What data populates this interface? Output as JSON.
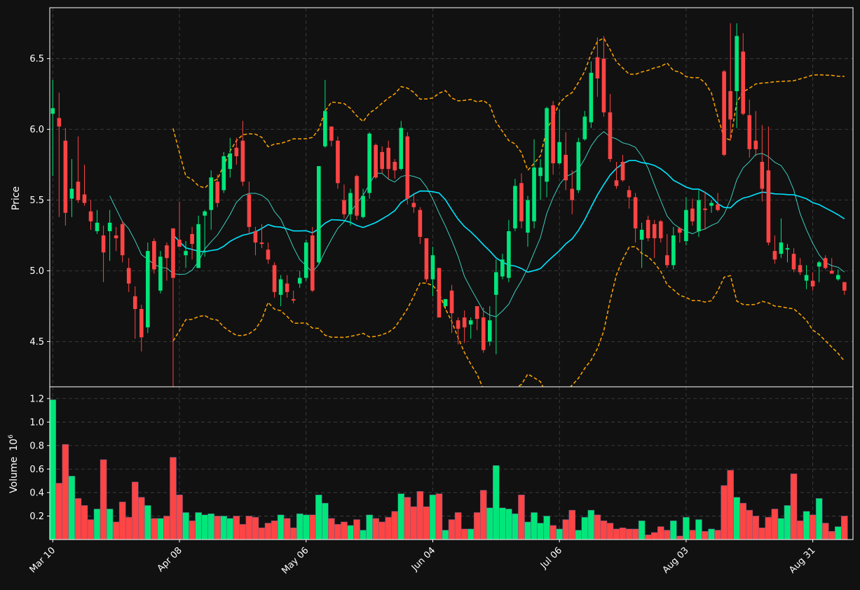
{
  "chart_data": {
    "type": "candlestick",
    "ylabel_price": "Price",
    "ylabel_volume": "Volume",
    "volume_multiplier_label": "10",
    "volume_multiplier_exp": "6",
    "price_ylim": [
      4.18,
      6.86
    ],
    "price_yticks": [
      "4.5",
      "5.0",
      "5.5",
      "6.0",
      "6.5"
    ],
    "volume_ylim": [
      0,
      1.3
    ],
    "volume_yticks": [
      "0.2",
      "0.4",
      "0.6",
      "0.8",
      "1.0",
      "1.2"
    ],
    "xtick_labels": [
      "Mar 10",
      "Apr 08",
      "May 06",
      "Jun 04",
      "Jul 06",
      "Aug 03",
      "Aug 31"
    ],
    "xtick_index": [
      0,
      20,
      40,
      60,
      80,
      100,
      120
    ],
    "grid": true,
    "colors": {
      "background": "#111111",
      "up": "#00e67a",
      "down": "#ff4444",
      "ma_fast": "#40e0d0",
      "ma_slow": "#00e5ff",
      "bollinger": "#ffa500",
      "frame": "#ffffff"
    },
    "series": [
      {
        "name": "Mar 10",
        "open": 6.11,
        "high": 6.35,
        "low": 5.67,
        "close": 6.15,
        "volume": 1.19
      },
      {
        "name": "",
        "open": 6.08,
        "high": 6.26,
        "low": 5.38,
        "close": 6.02,
        "volume": 0.48
      },
      {
        "name": "",
        "open": 5.92,
        "high": 6.01,
        "low": 5.32,
        "close": 5.41,
        "volume": 0.81
      },
      {
        "name": "",
        "open": 5.51,
        "high": 5.79,
        "low": 5.38,
        "close": 5.58,
        "volume": 0.54
      },
      {
        "name": "",
        "open": 5.63,
        "high": 5.95,
        "low": 5.48,
        "close": 5.5,
        "volume": 0.35
      },
      {
        "name": "",
        "open": 5.54,
        "high": 5.75,
        "low": 5.46,
        "close": 5.48,
        "volume": 0.29
      },
      {
        "name": "",
        "open": 5.42,
        "high": 5.5,
        "low": 5.29,
        "close": 5.35,
        "volume": 0.17
      },
      {
        "name": "",
        "open": 5.28,
        "high": 5.43,
        "low": 5.26,
        "close": 5.34,
        "volume": 0.26
      },
      {
        "name": "",
        "open": 5.25,
        "high": 5.32,
        "low": 4.92,
        "close": 5.13,
        "volume": 0.68
      },
      {
        "name": "",
        "open": 5.28,
        "high": 5.43,
        "low": 5.07,
        "close": 5.34,
        "volume": 0.26
      },
      {
        "name": "",
        "open": 5.25,
        "high": 5.31,
        "low": 5.14,
        "close": 5.23,
        "volume": 0.15
      },
      {
        "name": "",
        "open": 5.33,
        "high": 5.35,
        "low": 5.06,
        "close": 5.11,
        "volume": 0.32
      },
      {
        "name": "",
        "open": 5.02,
        "high": 5.09,
        "low": 4.85,
        "close": 4.91,
        "volume": 0.19
      },
      {
        "name": "",
        "open": 4.82,
        "high": 4.89,
        "low": 4.52,
        "close": 4.73,
        "volume": 0.49
      },
      {
        "name": "",
        "open": 4.73,
        "high": 4.76,
        "low": 4.43,
        "close": 4.53,
        "volume": 0.36
      },
      {
        "name": "",
        "open": 4.6,
        "high": 5.2,
        "low": 4.56,
        "close": 5.14,
        "volume": 0.29
      },
      {
        "name": "",
        "open": 5.21,
        "high": 5.23,
        "low": 4.98,
        "close": 5.01,
        "volume": 0.18
      },
      {
        "name": "",
        "open": 4.86,
        "high": 5.14,
        "low": 4.84,
        "close": 5.1,
        "volume": 0.18
      },
      {
        "name": "",
        "open": 5.18,
        "high": 5.2,
        "low": 4.93,
        "close": 5.09,
        "volume": 0.2
      },
      {
        "name": "",
        "open": 5.3,
        "high": 5.3,
        "low": 4.17,
        "close": 4.95,
        "volume": 0.7
      },
      {
        "name": "Apr 08",
        "open": 5.22,
        "high": 5.49,
        "low": 5.17,
        "close": 5.17,
        "volume": 0.38
      },
      {
        "name": "",
        "open": 5.11,
        "high": 5.21,
        "low": 5.02,
        "close": 5.14,
        "volume": 0.23
      },
      {
        "name": "",
        "open": 5.26,
        "high": 5.31,
        "low": 5.08,
        "close": 5.19,
        "volume": 0.16
      },
      {
        "name": "",
        "open": 5.02,
        "high": 5.39,
        "low": 5.02,
        "close": 5.33,
        "volume": 0.23
      },
      {
        "name": "",
        "open": 5.39,
        "high": 5.43,
        "low": 5.1,
        "close": 5.42,
        "volume": 0.21
      },
      {
        "name": "",
        "open": 5.43,
        "high": 5.71,
        "low": 5.29,
        "close": 5.66,
        "volume": 0.22
      },
      {
        "name": "",
        "open": 5.63,
        "high": 5.68,
        "low": 5.45,
        "close": 5.48,
        "volume": 0.2
      },
      {
        "name": "",
        "open": 5.57,
        "high": 5.84,
        "low": 5.55,
        "close": 5.81,
        "volume": 0.2
      },
      {
        "name": "",
        "open": 5.72,
        "high": 5.94,
        "low": 5.66,
        "close": 5.83,
        "volume": 0.18
      },
      {
        "name": "",
        "open": 5.87,
        "high": 5.94,
        "low": 5.75,
        "close": 5.81,
        "volume": 0.2
      },
      {
        "name": "",
        "open": 5.92,
        "high": 6.06,
        "low": 5.6,
        "close": 5.63,
        "volume": 0.13
      },
      {
        "name": "",
        "open": 5.54,
        "high": 5.63,
        "low": 5.26,
        "close": 5.31,
        "volume": 0.2
      },
      {
        "name": "",
        "open": 5.28,
        "high": 5.31,
        "low": 5.11,
        "close": 5.2,
        "volume": 0.19
      },
      {
        "name": "",
        "open": 5.2,
        "high": 5.33,
        "low": 5.16,
        "close": 5.19,
        "volume": 0.1
      },
      {
        "name": "",
        "open": 5.15,
        "high": 5.2,
        "low": 5.05,
        "close": 5.08,
        "volume": 0.14
      },
      {
        "name": "",
        "open": 5.04,
        "high": 5.06,
        "low": 4.81,
        "close": 4.85,
        "volume": 0.16
      },
      {
        "name": "",
        "open": 4.83,
        "high": 4.97,
        "low": 4.75,
        "close": 4.94,
        "volume": 0.21
      },
      {
        "name": "",
        "open": 4.91,
        "high": 4.97,
        "low": 4.81,
        "close": 4.85,
        "volume": 0.18
      },
      {
        "name": "",
        "open": 4.8,
        "high": 4.86,
        "low": 4.77,
        "close": 4.79,
        "volume": 0.1
      },
      {
        "name": "",
        "open": 4.91,
        "high": 5.0,
        "low": 4.88,
        "close": 4.95,
        "volume": 0.22
      },
      {
        "name": "May 06",
        "open": 4.95,
        "high": 5.22,
        "low": 4.93,
        "close": 5.2,
        "volume": 0.21
      },
      {
        "name": "",
        "open": 5.25,
        "high": 5.31,
        "low": 4.85,
        "close": 4.86,
        "volume": 0.21
      },
      {
        "name": "",
        "open": 5.06,
        "high": 5.74,
        "low": 5.05,
        "close": 5.74,
        "volume": 0.38
      },
      {
        "name": "",
        "open": 5.88,
        "high": 6.35,
        "low": 5.87,
        "close": 6.13,
        "volume": 0.31
      },
      {
        "name": "",
        "open": 6.02,
        "high": 6.02,
        "low": 5.88,
        "close": 5.92,
        "volume": 0.18
      },
      {
        "name": "",
        "open": 5.92,
        "high": 5.95,
        "low": 5.58,
        "close": 5.62,
        "volume": 0.13
      },
      {
        "name": "",
        "open": 5.5,
        "high": 5.61,
        "low": 5.37,
        "close": 5.4,
        "volume": 0.15
      },
      {
        "name": "",
        "open": 5.4,
        "high": 5.58,
        "low": 5.32,
        "close": 5.55,
        "volume": 0.12
      },
      {
        "name": "",
        "open": 5.67,
        "high": 5.68,
        "low": 5.36,
        "close": 5.39,
        "volume": 0.17
      },
      {
        "name": "",
        "open": 5.38,
        "high": 5.58,
        "low": 5.37,
        "close": 5.53,
        "volume": 0.08
      },
      {
        "name": "",
        "open": 5.55,
        "high": 5.98,
        "low": 5.51,
        "close": 5.97,
        "volume": 0.21
      },
      {
        "name": "",
        "open": 5.89,
        "high": 5.9,
        "low": 5.65,
        "close": 5.66,
        "volume": 0.18
      },
      {
        "name": "",
        "open": 5.84,
        "high": 5.88,
        "low": 5.69,
        "close": 5.72,
        "volume": 0.15
      },
      {
        "name": "",
        "open": 5.87,
        "high": 5.92,
        "low": 5.65,
        "close": 5.72,
        "volume": 0.19
      },
      {
        "name": "",
        "open": 5.77,
        "high": 5.79,
        "low": 5.65,
        "close": 5.71,
        "volume": 0.24
      },
      {
        "name": "",
        "open": 5.72,
        "high": 6.06,
        "low": 5.71,
        "close": 6.01,
        "volume": 0.39
      },
      {
        "name": "",
        "open": 5.95,
        "high": 5.98,
        "low": 5.47,
        "close": 5.51,
        "volume": 0.36
      },
      {
        "name": "",
        "open": 5.48,
        "high": 5.55,
        "low": 5.41,
        "close": 5.45,
        "volume": 0.28
      },
      {
        "name": "",
        "open": 5.43,
        "high": 5.45,
        "low": 5.19,
        "close": 5.24,
        "volume": 0.41
      },
      {
        "name": "",
        "open": 5.23,
        "high": 5.23,
        "low": 4.92,
        "close": 4.94,
        "volume": 0.28
      },
      {
        "name": "Jun 04",
        "open": 4.94,
        "high": 5.17,
        "low": 4.82,
        "close": 5.11,
        "volume": 0.38
      },
      {
        "name": "",
        "open": 5.02,
        "high": 5.02,
        "low": 4.67,
        "close": 4.67,
        "volume": 0.39
      },
      {
        "name": "",
        "open": 4.75,
        "high": 4.8,
        "low": 4.73,
        "close": 4.8,
        "volume": 0.08
      },
      {
        "name": "",
        "open": 4.86,
        "high": 4.9,
        "low": 4.56,
        "close": 4.7,
        "volume": 0.17
      },
      {
        "name": "",
        "open": 4.65,
        "high": 4.67,
        "low": 4.48,
        "close": 4.59,
        "volume": 0.23
      },
      {
        "name": "",
        "open": 4.67,
        "high": 4.72,
        "low": 4.49,
        "close": 4.6,
        "volume": 0.09
      },
      {
        "name": "",
        "open": 4.62,
        "high": 4.67,
        "low": 4.52,
        "close": 4.65,
        "volume": 0.09
      },
      {
        "name": "",
        "open": 4.75,
        "high": 4.75,
        "low": 4.58,
        "close": 4.66,
        "volume": 0.23
      },
      {
        "name": "",
        "open": 4.67,
        "high": 4.74,
        "low": 4.42,
        "close": 4.44,
        "volume": 0.42
      },
      {
        "name": "",
        "open": 4.5,
        "high": 4.75,
        "low": 4.47,
        "close": 4.65,
        "volume": 0.27
      },
      {
        "name": "",
        "open": 4.83,
        "high": 5.08,
        "low": 4.41,
        "close": 4.99,
        "volume": 0.63
      },
      {
        "name": "",
        "open": 4.96,
        "high": 5.12,
        "low": 4.94,
        "close": 5.08,
        "volume": 0.27
      },
      {
        "name": "",
        "open": 4.95,
        "high": 5.36,
        "low": 4.92,
        "close": 5.28,
        "volume": 0.26
      },
      {
        "name": "",
        "open": 5.3,
        "high": 5.65,
        "low": 5.28,
        "close": 5.6,
        "volume": 0.22
      },
      {
        "name": "",
        "open": 5.62,
        "high": 5.69,
        "low": 5.3,
        "close": 5.35,
        "volume": 0.38
      },
      {
        "name": "",
        "open": 5.27,
        "high": 5.53,
        "low": 5.17,
        "close": 5.5,
        "volume": 0.15
      },
      {
        "name": "",
        "open": 5.35,
        "high": 5.93,
        "low": 5.3,
        "close": 5.73,
        "volume": 0.23
      },
      {
        "name": "",
        "open": 5.67,
        "high": 5.79,
        "low": 5.5,
        "close": 5.73,
        "volume": 0.14
      },
      {
        "name": "",
        "open": 5.63,
        "high": 6.16,
        "low": 5.52,
        "close": 6.15,
        "volume": 0.2
      },
      {
        "name": "",
        "open": 6.17,
        "high": 6.2,
        "low": 5.68,
        "close": 5.76,
        "volume": 0.12
      },
      {
        "name": "Jul 06",
        "open": 5.76,
        "high": 6.14,
        "low": 5.75,
        "close": 5.91,
        "volume": 0.09
      },
      {
        "name": "",
        "open": 5.82,
        "high": 5.98,
        "low": 5.57,
        "close": 5.64,
        "volume": 0.17
      },
      {
        "name": "",
        "open": 5.58,
        "high": 5.71,
        "low": 5.4,
        "close": 5.5,
        "volume": 0.25
      },
      {
        "name": "",
        "open": 5.57,
        "high": 5.94,
        "low": 5.55,
        "close": 5.91,
        "volume": 0.08
      },
      {
        "name": "",
        "open": 5.93,
        "high": 6.13,
        "low": 5.92,
        "close": 6.09,
        "volume": 0.19
      },
      {
        "name": "",
        "open": 6.05,
        "high": 6.48,
        "low": 6.01,
        "close": 6.4,
        "volume": 0.25
      },
      {
        "name": "",
        "open": 6.51,
        "high": 6.65,
        "low": 6.23,
        "close": 6.36,
        "volume": 0.21
      },
      {
        "name": "",
        "open": 6.5,
        "high": 6.66,
        "low": 6.09,
        "close": 6.12,
        "volume": 0.16
      },
      {
        "name": "",
        "open": 6.12,
        "high": 6.25,
        "low": 5.77,
        "close": 5.79,
        "volume": 0.14
      },
      {
        "name": "",
        "open": 5.64,
        "high": 5.77,
        "low": 5.58,
        "close": 5.6,
        "volume": 0.09
      },
      {
        "name": "",
        "open": 5.77,
        "high": 5.82,
        "low": 5.63,
        "close": 5.64,
        "volume": 0.1
      },
      {
        "name": "",
        "open": 5.57,
        "high": 5.6,
        "low": 5.44,
        "close": 5.52,
        "volume": 0.09
      },
      {
        "name": "",
        "open": 5.52,
        "high": 5.55,
        "low": 5.2,
        "close": 5.3,
        "volume": 0.09
      },
      {
        "name": "",
        "open": 5.22,
        "high": 5.34,
        "low": 5.02,
        "close": 5.29,
        "volume": 0.16
      },
      {
        "name": "",
        "open": 5.36,
        "high": 5.39,
        "low": 5.21,
        "close": 5.23,
        "volume": 0.04
      },
      {
        "name": "",
        "open": 5.33,
        "high": 5.36,
        "low": 5.09,
        "close": 5.23,
        "volume": 0.06
      },
      {
        "name": "",
        "open": 5.35,
        "high": 5.36,
        "low": 5.2,
        "close": 5.23,
        "volume": 0.11
      },
      {
        "name": "",
        "open": 5.11,
        "high": 5.26,
        "low": 5.02,
        "close": 5.04,
        "volume": 0.08
      },
      {
        "name": "",
        "open": 5.04,
        "high": 5.31,
        "low": 5.01,
        "close": 5.25,
        "volume": 0.16
      },
      {
        "name": "",
        "open": 5.3,
        "high": 5.31,
        "low": 5.2,
        "close": 5.27,
        "volume": 0.03
      },
      {
        "name": "Aug 03",
        "open": 5.21,
        "high": 5.52,
        "low": 5.18,
        "close": 5.43,
        "volume": 0.19
      },
      {
        "name": "",
        "open": 5.44,
        "high": 5.51,
        "low": 5.32,
        "close": 5.35,
        "volume": 0.08
      },
      {
        "name": "",
        "open": 5.28,
        "high": 5.57,
        "low": 5.24,
        "close": 5.5,
        "volume": 0.17
      },
      {
        "name": "",
        "open": 5.44,
        "high": 5.56,
        "low": 5.29,
        "close": 5.43,
        "volume": 0.07
      },
      {
        "name": "",
        "open": 5.46,
        "high": 5.5,
        "low": 5.41,
        "close": 5.48,
        "volume": 0.09
      },
      {
        "name": "",
        "open": 5.47,
        "high": 5.55,
        "low": 5.42,
        "close": 5.43,
        "volume": 0.08
      },
      {
        "name": "",
        "open": 6.41,
        "high": 6.42,
        "low": 5.81,
        "close": 5.82,
        "volume": 0.46
      },
      {
        "name": "",
        "open": 6.27,
        "high": 6.75,
        "low": 5.92,
        "close": 6.07,
        "volume": 0.59
      },
      {
        "name": "",
        "open": 6.27,
        "high": 6.75,
        "low": 6.01,
        "close": 6.66,
        "volume": 0.36
      },
      {
        "name": "",
        "open": 6.55,
        "high": 6.68,
        "low": 6.1,
        "close": 6.11,
        "volume": 0.31
      },
      {
        "name": "",
        "open": 6.1,
        "high": 6.21,
        "low": 5.8,
        "close": 5.86,
        "volume": 0.25
      },
      {
        "name": "",
        "open": 5.92,
        "high": 6.13,
        "low": 5.81,
        "close": 5.86,
        "volume": 0.2
      },
      {
        "name": "",
        "open": 5.77,
        "high": 6.03,
        "low": 5.49,
        "close": 5.58,
        "volume": 0.1
      },
      {
        "name": "",
        "open": 5.71,
        "high": 6.02,
        "low": 5.18,
        "close": 5.2,
        "volume": 0.19
      },
      {
        "name": "",
        "open": 5.14,
        "high": 5.25,
        "low": 5.05,
        "close": 5.08,
        "volume": 0.26
      },
      {
        "name": "",
        "open": 5.12,
        "high": 5.37,
        "low": 5.09,
        "close": 5.2,
        "volume": 0.18
      },
      {
        "name": "",
        "open": 5.15,
        "high": 5.19,
        "low": 5.06,
        "close": 5.16,
        "volume": 0.29
      },
      {
        "name": "",
        "open": 5.12,
        "high": 5.16,
        "low": 4.99,
        "close": 5.01,
        "volume": 0.56
      },
      {
        "name": "",
        "open": 5.04,
        "high": 5.09,
        "low": 4.97,
        "close": 4.99,
        "volume": 0.16
      },
      {
        "name": "",
        "open": 4.93,
        "high": 5.04,
        "low": 4.87,
        "close": 4.97,
        "volume": 0.24
      },
      {
        "name": "Aug 31",
        "open": 4.93,
        "high": 4.99,
        "low": 4.86,
        "close": 4.89,
        "volume": 0.21
      },
      {
        "name": "",
        "open": 5.03,
        "high": 5.07,
        "low": 4.92,
        "close": 5.06,
        "volume": 0.35
      },
      {
        "name": "",
        "open": 5.09,
        "high": 5.11,
        "low": 5.01,
        "close": 5.02,
        "volume": 0.14
      },
      {
        "name": "",
        "open": 5.0,
        "high": 5.09,
        "low": 4.98,
        "close": 4.98,
        "volume": 0.07
      },
      {
        "name": "",
        "open": 4.94,
        "high": 5.01,
        "low": 4.93,
        "close": 4.97,
        "volume": 0.11
      },
      {
        "name": "",
        "open": 4.92,
        "high": 4.92,
        "low": 4.83,
        "close": 4.86,
        "volume": 0.2
      }
    ]
  }
}
